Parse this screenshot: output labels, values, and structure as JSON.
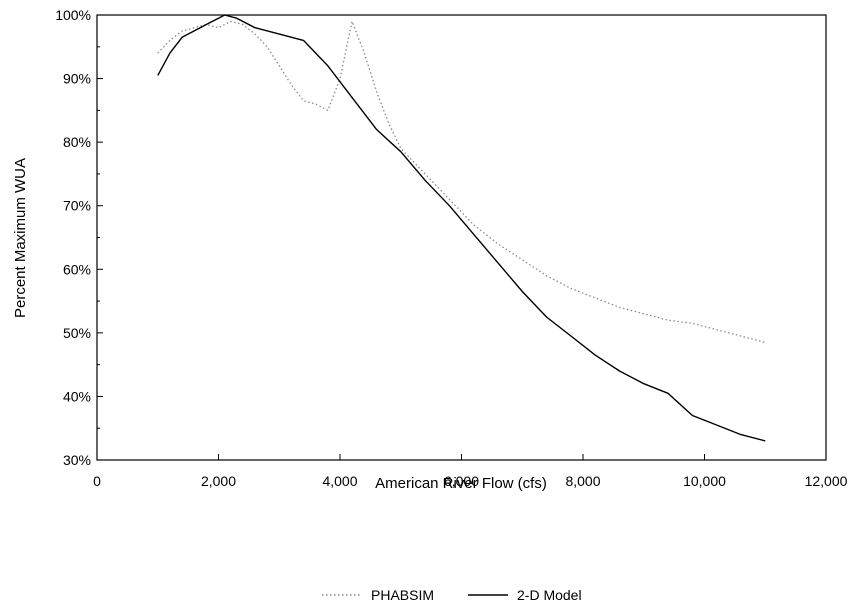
{
  "chart_data": {
    "type": "line",
    "title": "",
    "xlabel": "American River Flow (cfs)",
    "ylabel": "Percent Maximum WUA",
    "xlim": [
      0,
      12000
    ],
    "ylim": [
      30,
      100
    ],
    "x_ticks": [
      0,
      2000,
      4000,
      6000,
      8000,
      10000,
      12000
    ],
    "x_tick_labels": [
      "0",
      "2,000",
      "4,000",
      "6,000",
      "8,000",
      "10,000",
      "12,000"
    ],
    "y_ticks": [
      30,
      40,
      50,
      60,
      70,
      80,
      90,
      100
    ],
    "y_tick_labels": [
      "30%",
      "40%",
      "50%",
      "60%",
      "70%",
      "80%",
      "90%",
      "100%"
    ],
    "grid": false,
    "legend_position": "bottom-center",
    "series": [
      {
        "name": "PHABSIM",
        "style": "dotted",
        "color": "#8a8a8a",
        "x": [
          1000,
          1200,
          1400,
          1600,
          1800,
          2000,
          2200,
          2400,
          2600,
          2800,
          3000,
          3200,
          3400,
          3600,
          3800,
          4000,
          4200,
          4400,
          4600,
          4800,
          5000,
          5400,
          5800,
          6200,
          6600,
          7000,
          7400,
          7800,
          8200,
          8600,
          9000,
          9400,
          9800,
          10200,
          10600,
          11000
        ],
        "values": [
          94,
          96,
          97.5,
          98,
          98.5,
          98,
          99,
          98.5,
          97,
          95,
          92,
          89,
          86.5,
          86,
          85,
          90,
          99,
          94,
          88,
          83,
          79,
          75,
          71,
          67,
          64,
          61.5,
          59,
          57,
          55.5,
          54,
          53,
          52,
          51.5,
          50.5,
          49.5,
          48.5
        ]
      },
      {
        "name": "2-D Model",
        "style": "solid",
        "color": "#000000",
        "x": [
          1000,
          1200,
          1400,
          1600,
          1800,
          2000,
          2100,
          2300,
          2600,
          3000,
          3400,
          3800,
          4200,
          4600,
          5000,
          5400,
          5800,
          6200,
          6600,
          7000,
          7400,
          7800,
          8200,
          8600,
          9000,
          9400,
          9800,
          10200,
          10600,
          11000
        ],
        "values": [
          90.5,
          94,
          96.5,
          97.5,
          98.5,
          99.5,
          100,
          99.5,
          98,
          97,
          96,
          92,
          87,
          82,
          78.5,
          74,
          70,
          65.5,
          61,
          56.5,
          52.5,
          49.5,
          46.5,
          44,
          42,
          40.5,
          37,
          35.5,
          34,
          33
        ]
      }
    ]
  }
}
